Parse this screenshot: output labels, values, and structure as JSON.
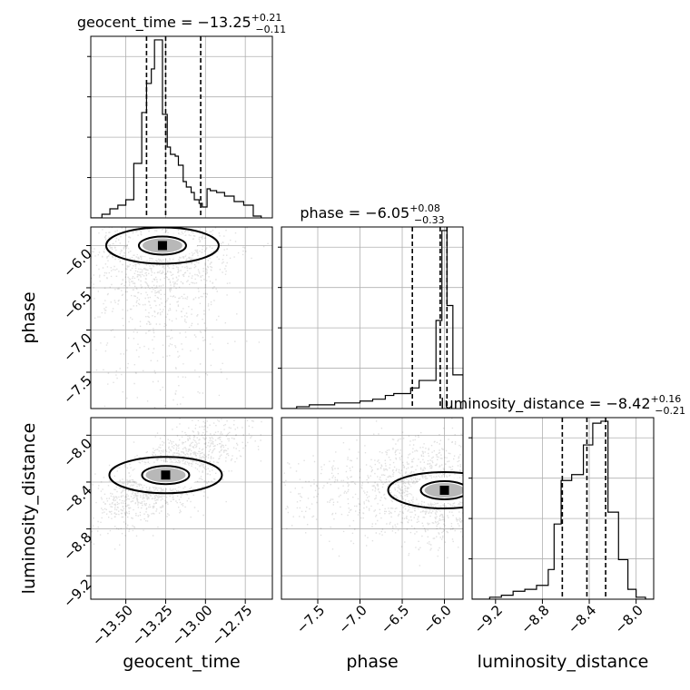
{
  "chart_data": {
    "type": "corner",
    "parameters": [
      {
        "name": "geocent_time",
        "xlabel": "geocent_time",
        "title": {
          "label": "geocent_time",
          "median": "−13.25",
          "plus": "+0.21",
          "minus": "−0.11"
        },
        "range": [
          -13.72,
          -12.58
        ],
        "ticks": [
          {
            "value": -13.5,
            "label": "−13.50"
          },
          {
            "value": -13.25,
            "label": "−13.25"
          },
          {
            "value": -13.0,
            "label": "−13.00"
          },
          {
            "value": -12.75,
            "label": "−12.75"
          }
        ],
        "quantiles": [
          -13.37,
          -13.25,
          -13.03
        ],
        "hist_edges": [
          -13.72,
          -13.65,
          -13.6,
          -13.55,
          -13.5,
          -13.45,
          -13.4,
          -13.37,
          -13.34,
          -13.32,
          -13.29,
          -13.27,
          -13.24,
          -13.22,
          -13.19,
          -13.17,
          -13.14,
          -13.12,
          -13.09,
          -13.07,
          -13.04,
          -13.02,
          -12.99,
          -12.97,
          -12.93,
          -12.88,
          -12.82,
          -12.76,
          -12.7,
          -12.65
        ],
        "hist_counts": [
          0.0,
          0.02,
          0.05,
          0.07,
          0.1,
          0.3,
          0.58,
          0.74,
          0.82,
          0.98,
          0.98,
          0.57,
          0.39,
          0.35,
          0.34,
          0.29,
          0.2,
          0.17,
          0.14,
          0.1,
          0.08,
          0.06,
          0.16,
          0.15,
          0.14,
          0.12,
          0.09,
          0.07,
          0.01
        ]
      },
      {
        "name": "phase",
        "xlabel": "phase",
        "ylabel": "phase",
        "title": {
          "label": "phase",
          "median": "−6.05",
          "plus": "+0.08",
          "minus": "−0.33"
        },
        "range": [
          -7.93,
          -5.78
        ],
        "ticks": [
          {
            "value": -7.5,
            "label": "−7.5"
          },
          {
            "value": -7.0,
            "label": "−7.0"
          },
          {
            "value": -6.5,
            "label": "−6.5"
          },
          {
            "value": -6.0,
            "label": "−6.0"
          }
        ],
        "quantiles": [
          -6.38,
          -6.05,
          -5.97
        ],
        "hist_edges": [
          -7.93,
          -7.75,
          -7.6,
          -7.45,
          -7.3,
          -7.15,
          -7.0,
          -6.85,
          -6.7,
          -6.6,
          -6.5,
          -6.4,
          -6.3,
          -6.2,
          -6.1,
          -6.03,
          -5.97,
          -5.9,
          -5.78
        ],
        "hist_counts": [
          0.0,
          0.01,
          0.02,
          0.02,
          0.03,
          0.03,
          0.04,
          0.05,
          0.07,
          0.08,
          0.08,
          0.11,
          0.15,
          0.15,
          0.47,
          0.95,
          0.55,
          0.18
        ]
      },
      {
        "name": "luminosity_distance",
        "xlabel": "luminosity_distance",
        "ylabel": "luminosity_distance",
        "title": {
          "label": "luminosity_distance",
          "median": "−8.42",
          "plus": "+0.16",
          "minus": "−0.21"
        },
        "range": [
          -9.4,
          -7.85
        ],
        "ticks": [
          {
            "value": -9.2,
            "label": "−9.2"
          },
          {
            "value": -8.8,
            "label": "−8.8"
          },
          {
            "value": -8.4,
            "label": "−8.4"
          },
          {
            "value": -8.0,
            "label": "−8.0"
          }
        ],
        "quantiles": [
          -8.63,
          -8.42,
          -8.26
        ],
        "hist_edges": [
          -9.4,
          -9.25,
          -9.15,
          -9.05,
          -8.95,
          -8.85,
          -8.75,
          -8.7,
          -8.64,
          -8.55,
          -8.45,
          -8.37,
          -8.3,
          -8.24,
          -8.15,
          -8.07,
          -8.0,
          -7.92,
          -7.85
        ],
        "hist_counts": [
          0.0,
          0.01,
          0.02,
          0.04,
          0.05,
          0.07,
          0.15,
          0.38,
          0.6,
          0.63,
          0.78,
          0.89,
          0.9,
          0.44,
          0.2,
          0.05,
          0.01,
          0.0
        ]
      }
    ],
    "pairs": [
      {
        "x": 0,
        "y": 1,
        "scatter_color": "#000000",
        "peak": [
          -13.27,
          -6.0
        ]
      },
      {
        "x": 0,
        "y": 2,
        "scatter_color": "#000000",
        "peak": [
          -13.25,
          -8.34
        ]
      },
      {
        "x": 1,
        "y": 2,
        "scatter_color": "#000000",
        "peak": [
          -6.0,
          -8.47
        ]
      }
    ],
    "grid": true
  }
}
